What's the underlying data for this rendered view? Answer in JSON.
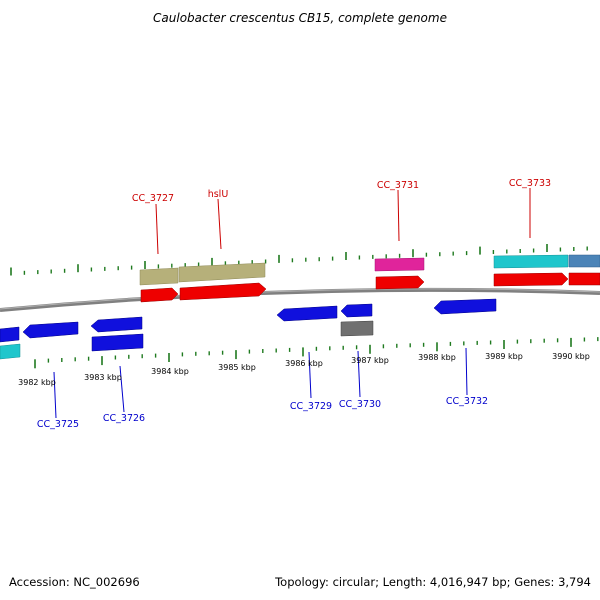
{
  "title": "Caulobacter crescentus CB15, complete genome",
  "accession": "Accession: NC_002696",
  "summary": "Topology: circular; Length: 4,016,947 bp; Genes: 3,794",
  "colors": {
    "backbone": "#808080",
    "tick": "#1f7a1f",
    "forward_label": "#cc0000",
    "reverse_label": "#0000cc"
  },
  "scale_labels": [
    "3982 kbp",
    "3983 kbp",
    "3984 kbp",
    "3985 kbp",
    "3986 kbp",
    "3987 kbp",
    "3988 kbp",
    "3989 kbp",
    "3990 kbp"
  ],
  "forward_labels": [
    "CC_3727",
    "hslU",
    "CC_3731",
    "CC_3733"
  ],
  "reverse_labels": [
    "CC_3725",
    "CC_3726",
    "CC_3729",
    "CC_3730",
    "CC_3732"
  ]
}
